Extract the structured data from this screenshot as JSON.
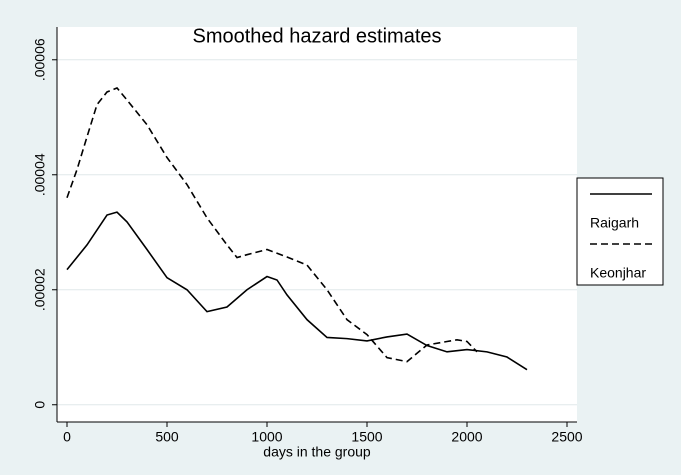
{
  "chart_data": {
    "type": "line",
    "title": "Smoothed hazard estimates",
    "x_label": "days in the group",
    "xlim": [
      -50,
      2550
    ],
    "xticks": [
      0,
      500,
      1000,
      1500,
      2000,
      2500
    ],
    "ylim": [
      -3e-06,
      6.57e-05
    ],
    "yticks": [
      0,
      {
        "value": 2e-05,
        "label": ".00002"
      },
      {
        "value": 4e-05,
        "label": ".00004"
      },
      {
        "value": 6e-05,
        "label": ".00006"
      }
    ],
    "grid": true,
    "legend": "right",
    "series": [
      {
        "name": "Raigarh",
        "color": "#000000",
        "dash": "solid",
        "x": [
          0,
          100,
          200,
          250,
          300,
          400,
          500,
          600,
          700,
          800,
          900,
          1000,
          1050,
          1100,
          1200,
          1300,
          1400,
          1500,
          1600,
          1700,
          1800,
          1900,
          2000,
          2100,
          2200,
          2300
        ],
        "values": [
          2.35e-05,
          2.78e-05,
          3.3e-05,
          3.35e-05,
          3.18e-05,
          2.7e-05,
          2.21e-05,
          2e-05,
          1.62e-05,
          1.7e-05,
          2e-05,
          2.23e-05,
          2.17e-05,
          1.91e-05,
          1.48e-05,
          1.17e-05,
          1.15e-05,
          1.11e-05,
          1.18e-05,
          1.23e-05,
          1.03e-05,
          9.2e-06,
          9.6e-06,
          9.2e-06,
          8.3e-06,
          6.1e-06
        ]
      },
      {
        "name": "Keonjhar",
        "color": "#000000",
        "dash": "dashed",
        "x": [
          0,
          50,
          100,
          150,
          200,
          250,
          300,
          400,
          500,
          600,
          700,
          800,
          850,
          900,
          1000,
          1100,
          1200,
          1300,
          1400,
          1500,
          1600,
          1700,
          1800,
          1900,
          1950,
          2000,
          2050
        ],
        "values": [
          3.6e-05,
          4.09e-05,
          4.66e-05,
          5.22e-05,
          5.44e-05,
          5.51e-05,
          5.3e-05,
          4.87e-05,
          4.3e-05,
          3.83e-05,
          3.25e-05,
          2.78e-05,
          2.56e-05,
          2.61e-05,
          2.7e-05,
          2.57e-05,
          2.43e-05,
          2e-05,
          1.48e-05,
          1.22e-05,
          8.2e-06,
          7.5e-06,
          1.04e-05,
          1.1e-05,
          1.13e-05,
          1.1e-05,
          9.2e-06
        ]
      }
    ]
  }
}
